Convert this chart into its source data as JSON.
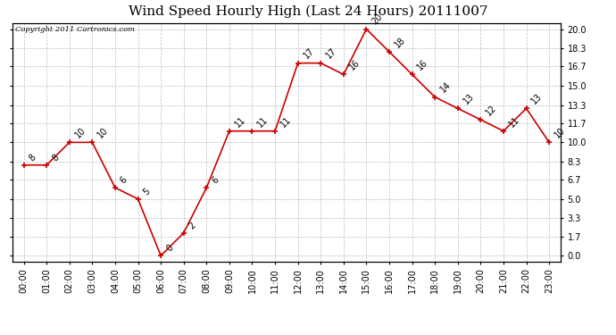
{
  "title": "Wind Speed Hourly High (Last 24 Hours) 20111007",
  "copyright": "Copyright 2011 Cartronics.com",
  "hours": [
    "00:00",
    "01:00",
    "02:00",
    "03:00",
    "04:00",
    "05:00",
    "06:00",
    "07:00",
    "08:00",
    "09:00",
    "10:00",
    "11:00",
    "12:00",
    "13:00",
    "14:00",
    "15:00",
    "16:00",
    "17:00",
    "18:00",
    "19:00",
    "20:00",
    "21:00",
    "22:00",
    "23:00"
  ],
  "values": [
    8,
    8,
    10,
    10,
    6,
    5,
    0,
    2,
    6,
    11,
    11,
    11,
    17,
    17,
    16,
    20,
    18,
    16,
    14,
    13,
    12,
    11,
    13,
    10
  ],
  "line_color": "#cc0000",
  "marker_color": "#cc0000",
  "bg_color": "#ffffff",
  "grid_color": "#bbbbbb",
  "title_fontsize": 11,
  "label_fontsize": 7,
  "tick_fontsize": 7,
  "yticks": [
    0.0,
    1.7,
    3.3,
    5.0,
    6.7,
    8.3,
    10.0,
    11.7,
    13.3,
    15.0,
    16.7,
    18.3,
    20.0
  ],
  "ylim": [
    -0.5,
    20.5
  ]
}
